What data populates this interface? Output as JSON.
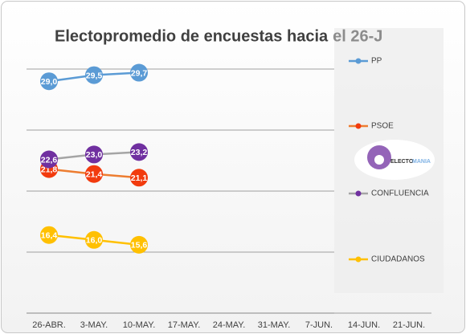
{
  "chart_data": {
    "type": "line",
    "title": "Electopromedio de encuestas hacia",
    "title_suffix": "el 26-J",
    "categories": [
      "26-ABR.",
      "3-MAY.",
      "10-MAY.",
      "17-MAY.",
      "24-MAY.",
      "31-MAY.",
      "7-JUN.",
      "14-JUN.",
      "21-JUN."
    ],
    "series": [
      {
        "name": "PP",
        "color": "#5b9bd5",
        "marker_color": "#5b9bd5",
        "values": [
          29.0,
          29.5,
          29.7,
          null,
          null,
          null,
          null,
          null,
          null
        ],
        "value_labels": [
          "29,0",
          "29,5",
          "29,7",
          null,
          null,
          null,
          null,
          null,
          null
        ]
      },
      {
        "name": "PSOE",
        "color": "#ed7d31",
        "marker_color": "#f23b0e",
        "values": [
          21.8,
          21.4,
          21.1,
          null,
          null,
          null,
          null,
          null,
          null
        ],
        "value_labels": [
          "21,8",
          "21,4",
          "21,1",
          null,
          null,
          null,
          null,
          null,
          null
        ]
      },
      {
        "name": "CONFLUENCIA",
        "color": "#a5a5a5",
        "marker_color": "#7030a0",
        "values": [
          22.6,
          23.0,
          23.2,
          null,
          null,
          null,
          null,
          null,
          null
        ],
        "value_labels": [
          "22,6",
          "23,0",
          "23,2",
          null,
          null,
          null,
          null,
          null,
          null
        ]
      },
      {
        "name": "CIUDADANOS",
        "color": "#ffc000",
        "marker_color": "#ffc000",
        "values": [
          16.4,
          16.0,
          15.6,
          null,
          null,
          null,
          null,
          null,
          null
        ],
        "value_labels": [
          "16,4",
          "16,0",
          "15,6",
          null,
          null,
          null,
          null,
          null,
          null
        ]
      }
    ],
    "ylim": [
      10,
      35
    ],
    "yticks": [
      10,
      15,
      20,
      25,
      30
    ],
    "grid": true,
    "legend": "right",
    "logo_text": [
      "ELECTO",
      "MANIA"
    ]
  }
}
